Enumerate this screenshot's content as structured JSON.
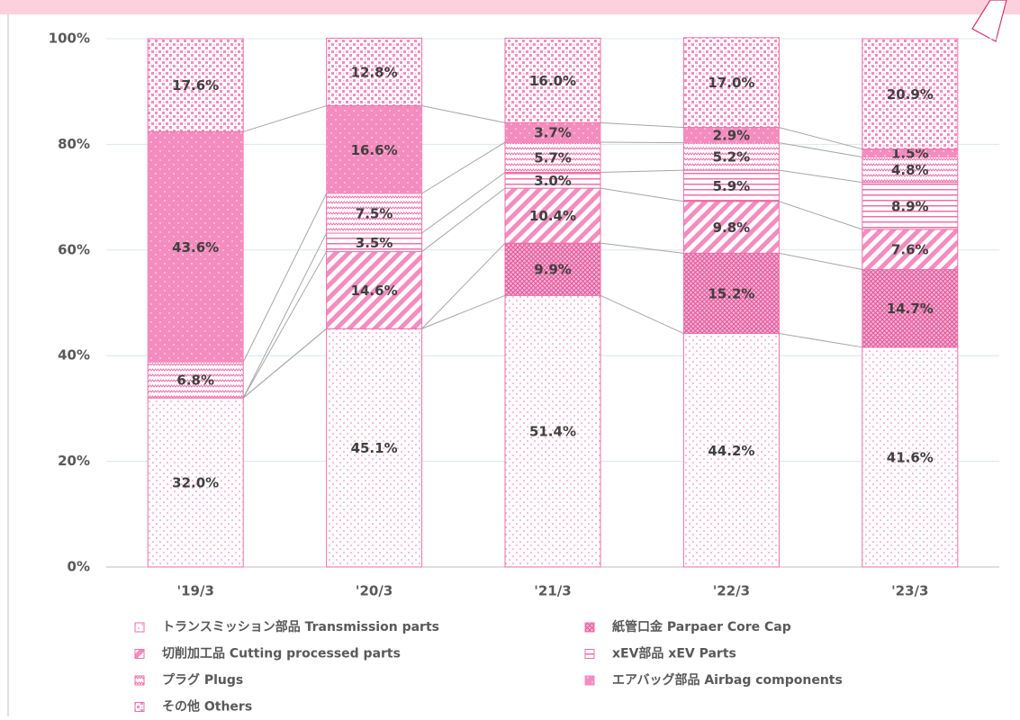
{
  "chart_data": {
    "type": "stacked_bar",
    "categories": [
      "'19/3",
      "'20/3",
      "'21/3",
      "'22/3",
      "'23/3"
    ],
    "ylim": [
      0,
      100
    ],
    "yticks": [
      {
        "value": 0,
        "label": "0%"
      },
      {
        "value": 20,
        "label": "20%"
      },
      {
        "value": 40,
        "label": "40%"
      },
      {
        "value": 60,
        "label": "60%"
      },
      {
        "value": 80,
        "label": "80%"
      },
      {
        "value": 100,
        "label": "100%"
      }
    ],
    "grid": true,
    "series": [
      {
        "name": "トランスミッション部品 Transmission parts",
        "color": "#f06eaa",
        "pattern": "dots",
        "values": [
          32.0,
          45.1,
          51.4,
          44.2,
          41.6
        ],
        "value_labels": [
          "32.0%",
          "45.1%",
          "51.4%",
          "44.2%",
          "41.6%"
        ]
      },
      {
        "name": "紙管口金 Parpaer Core Cap",
        "color": "#f06eaa",
        "pattern": "crosshatch",
        "values": [
          null,
          null,
          9.9,
          15.2,
          14.7
        ],
        "value_labels": [
          null,
          null,
          "9.9%",
          "15.2%",
          "14.7%"
        ]
      },
      {
        "name": "切削加工品 Cutting processed parts",
        "color": "#f06eaa",
        "pattern": "diagonal",
        "values": [
          null,
          14.6,
          10.4,
          9.8,
          7.6
        ],
        "value_labels": [
          null,
          "14.6%",
          "10.4%",
          "9.8%",
          "7.6%"
        ]
      },
      {
        "name": "xEV部品 xEV Parts",
        "color": "#f06eaa",
        "pattern": "horizontal",
        "values": [
          null,
          3.5,
          3.0,
          5.9,
          8.9
        ],
        "value_labels": [
          null,
          "3.5%",
          "3.0%",
          "5.9%",
          "8.9%"
        ]
      },
      {
        "name": "プラグ Plugs",
        "color": "#f06eaa",
        "pattern": "zigzag",
        "values": [
          6.8,
          7.5,
          5.7,
          5.2,
          4.8
        ],
        "value_labels": [
          "6.8%",
          "7.5%",
          "5.7%",
          "5.2%",
          "4.8%"
        ]
      },
      {
        "name": "エアバッグ部品 Airbag components",
        "color": "#f48cbf",
        "pattern": "solid",
        "values": [
          43.6,
          16.6,
          3.7,
          2.9,
          1.5
        ],
        "value_labels": [
          "43.6%",
          "16.6%",
          "3.7%",
          "2.9%",
          "1.5%"
        ]
      },
      {
        "name": "その他 Others",
        "color": "#f06eaa",
        "pattern": "checker",
        "values": [
          17.6,
          12.8,
          16.0,
          17.0,
          20.9
        ],
        "value_labels": [
          "17.6%",
          "12.8%",
          "16.0%",
          "17.0%",
          "20.9%"
        ]
      }
    ]
  }
}
